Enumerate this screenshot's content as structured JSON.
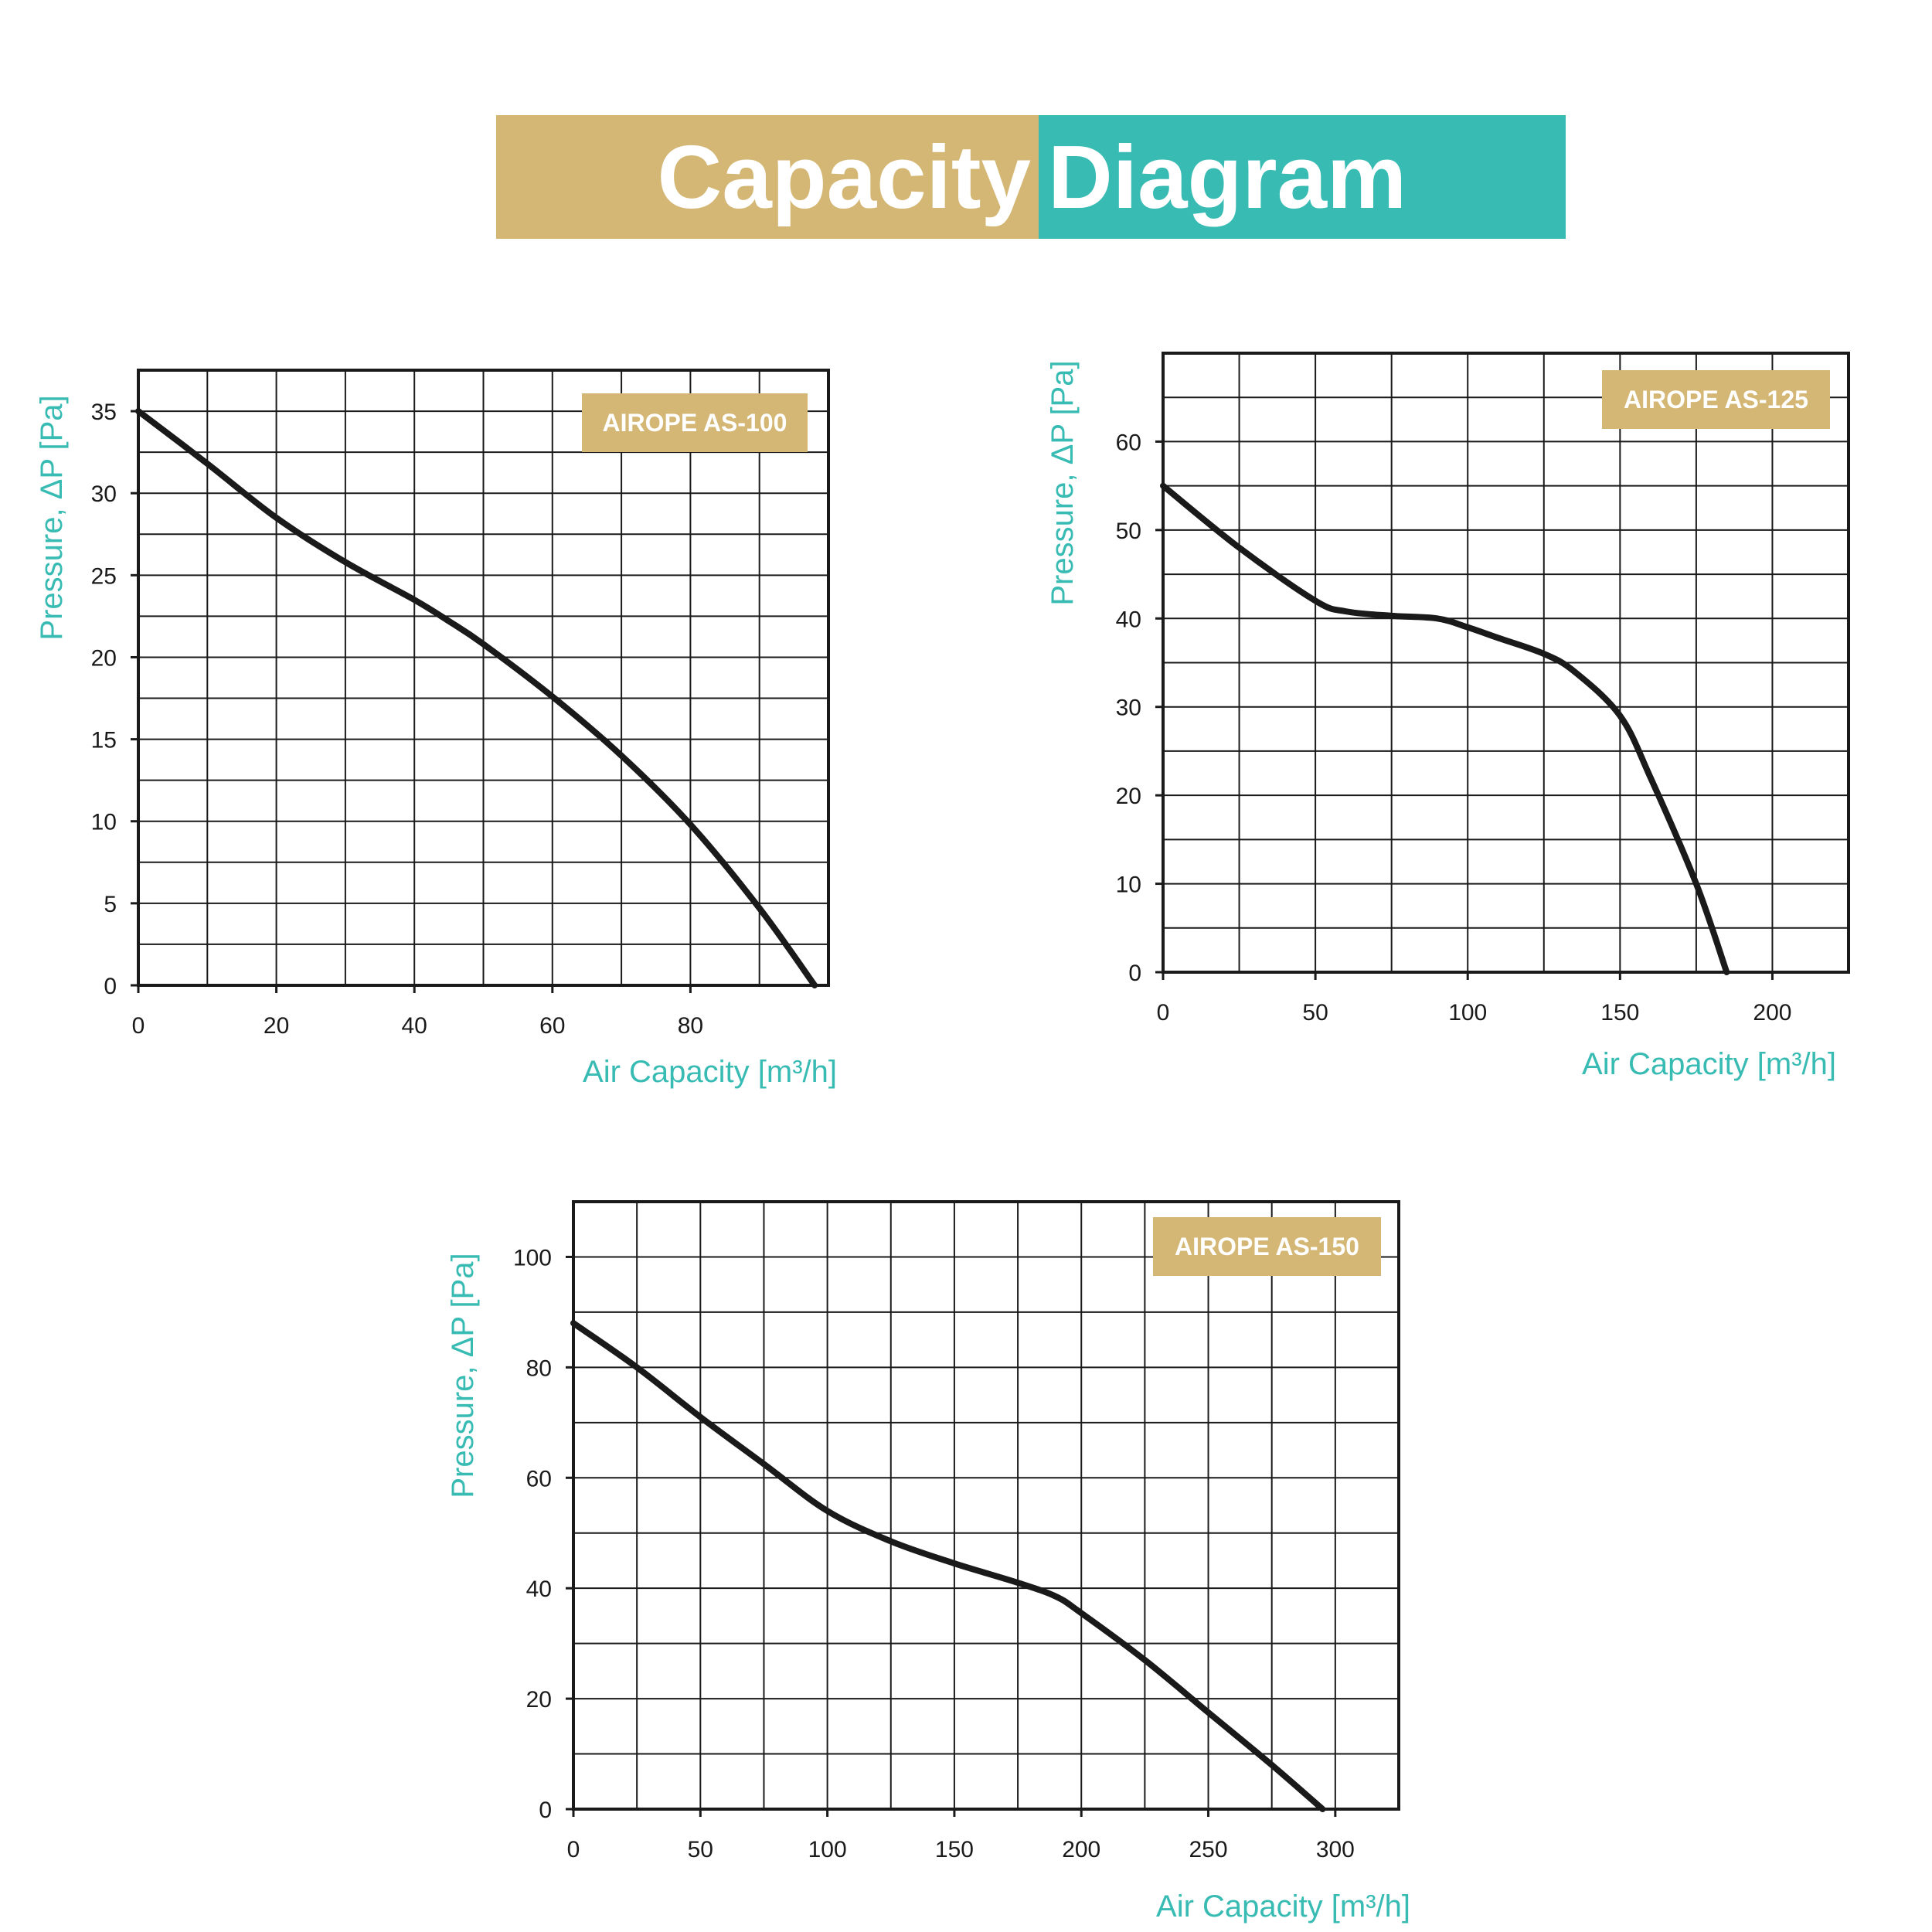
{
  "header": {
    "title_left": "Capacity",
    "title_right": "Diagram",
    "color_left": "#D4B774",
    "color_right": "#37BBB3"
  },
  "chart_data": [
    {
      "type": "line",
      "badge": "AIROPE AS-100",
      "xlabel": "Air Capacity [m³/h]",
      "ylabel": "Pressure, ΔP [Pa]",
      "xlim": [
        0,
        100
      ],
      "ylim": [
        0,
        37.5
      ],
      "x_ticks": [
        0,
        20,
        40,
        60,
        80
      ],
      "y_ticks": [
        0,
        5,
        10,
        15,
        20,
        25,
        30,
        35
      ],
      "grid": true,
      "series": [
        {
          "x": [
            0,
            10,
            20,
            30,
            40,
            45,
            50,
            60,
            70,
            80,
            90,
            98
          ],
          "y": [
            35,
            31.8,
            28.5,
            25.8,
            23.5,
            22.2,
            20.8,
            17.6,
            14,
            9.8,
            4.7,
            0
          ]
        }
      ]
    },
    {
      "type": "line",
      "badge": "AIROPE AS-125",
      "xlabel": "Air Capacity [m³/h]",
      "ylabel": "Pressure, ΔP [Pa]",
      "xlim": [
        0,
        225
      ],
      "ylim": [
        0,
        70
      ],
      "x_ticks": [
        0,
        50,
        100,
        150,
        200
      ],
      "y_ticks": [
        0,
        10,
        20,
        30,
        40,
        50,
        60
      ],
      "grid": true,
      "series": [
        {
          "x": [
            0,
            25,
            50,
            60,
            75,
            90,
            100,
            110,
            125,
            135,
            150,
            160,
            175,
            185
          ],
          "y": [
            55,
            48,
            42,
            40.8,
            40.3,
            40,
            39,
            37.8,
            36,
            34,
            29,
            22,
            10,
            0
          ]
        }
      ]
    },
    {
      "type": "line",
      "badge": "AIROPE AS-150",
      "xlabel": "Air Capacity [m³/h]",
      "ylabel": "Pressure, ΔP [Pa]",
      "xlim": [
        0,
        325
      ],
      "ylim": [
        0,
        110
      ],
      "x_ticks": [
        0,
        50,
        100,
        150,
        200,
        250,
        300
      ],
      "y_ticks": [
        0,
        20,
        40,
        60,
        80,
        100
      ],
      "grid": true,
      "series": [
        {
          "x": [
            0,
            25,
            50,
            75,
            100,
            125,
            150,
            175,
            190,
            200,
            225,
            250,
            275,
            295
          ],
          "y": [
            88,
            80,
            71,
            62.5,
            54,
            48.5,
            44.5,
            41,
            38.5,
            35.5,
            27,
            17.5,
            8,
            0
          ]
        }
      ]
    }
  ]
}
